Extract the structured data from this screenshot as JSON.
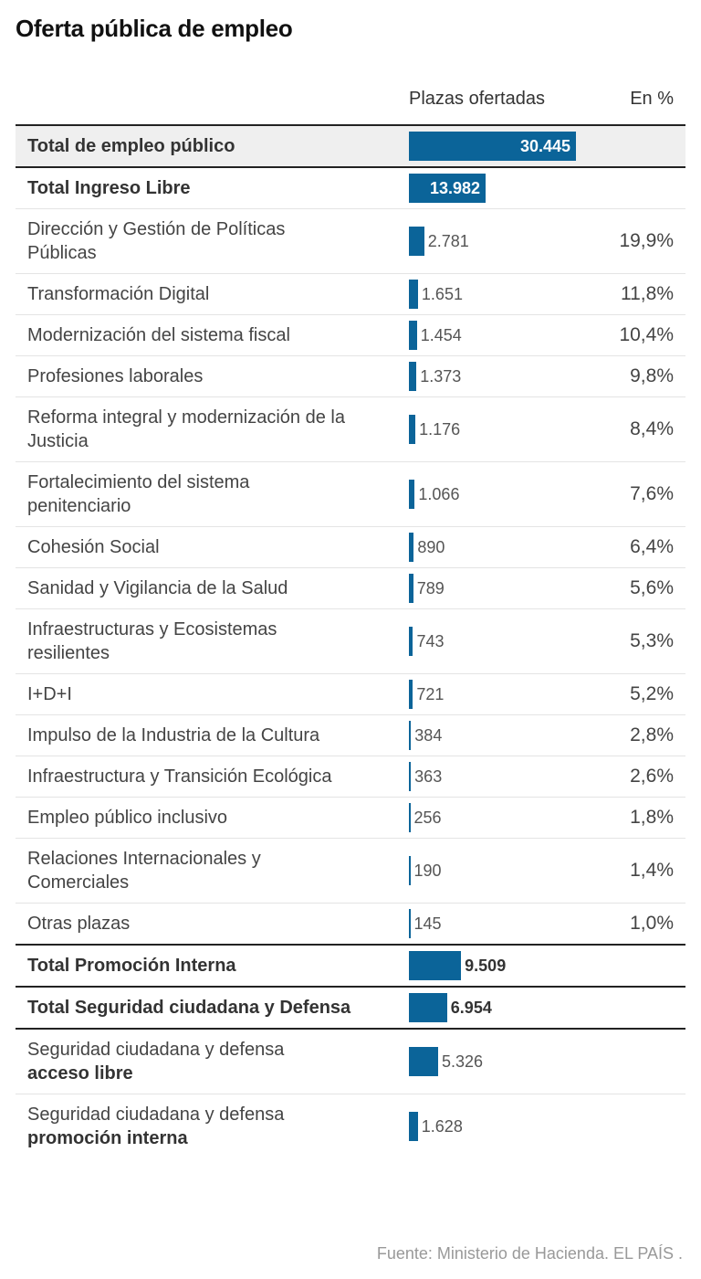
{
  "title": "Oferta pública de empleo",
  "source": "Fuente: Ministerio de Hacienda. EL PAÍS .",
  "chart_data": {
    "type": "table",
    "columns": [
      "Plazas ofertadas",
      "En %"
    ],
    "bar_color": "#0b6499",
    "rows": [
      {
        "label": "Total de empleo público",
        "value": 30445,
        "value_label": "30.445",
        "pct": "",
        "total": true,
        "shaded": true
      },
      {
        "label": "Total Ingreso Libre",
        "value": 13982,
        "value_label": "13.982",
        "pct": "",
        "total": true
      },
      {
        "label": "Dirección y Gestión de Políticas Públicas",
        "value": 2781,
        "value_label": "2.781",
        "pct": "19,9%"
      },
      {
        "label": "Transformación Digital",
        "value": 1651,
        "value_label": "1.651",
        "pct": "11,8%"
      },
      {
        "label": "Modernización del sistema fiscal",
        "value": 1454,
        "value_label": "1.454",
        "pct": "10,4%"
      },
      {
        "label": "Profesiones laborales",
        "value": 1373,
        "value_label": "1.373",
        "pct": "9,8%"
      },
      {
        "label": "Reforma integral y modernización de la Justicia",
        "value": 1176,
        "value_label": "1.176",
        "pct": "8,4%"
      },
      {
        "label": "Fortalecimiento del sistema penitenciario",
        "value": 1066,
        "value_label": "1.066",
        "pct": "7,6%"
      },
      {
        "label": "Cohesión Social",
        "value": 890,
        "value_label": "890",
        "pct": "6,4%"
      },
      {
        "label": "Sanidad y Vigilancia de la Salud",
        "value": 789,
        "value_label": "789",
        "pct": "5,6%"
      },
      {
        "label": "Infraestructuras y Ecosistemas resilientes",
        "value": 743,
        "value_label": "743",
        "pct": "5,3%"
      },
      {
        "label": "I+D+I",
        "value": 721,
        "value_label": "721",
        "pct": "5,2%"
      },
      {
        "label": "Impulso de la Industria de la Cultura",
        "value": 384,
        "value_label": "384",
        "pct": "2,8%"
      },
      {
        "label": "Infraestructura y Transición Ecológica",
        "value": 363,
        "value_label": "363",
        "pct": "2,6%"
      },
      {
        "label": "Empleo público inclusivo",
        "value": 256,
        "value_label": "256",
        "pct": "1,8%"
      },
      {
        "label": "Relaciones Internacionales y Comerciales",
        "value": 190,
        "value_label": "190",
        "pct": "1,4%"
      },
      {
        "label": "Otras plazas",
        "value": 145,
        "value_label": "145",
        "pct": "1,0%"
      },
      {
        "label": "Total Promoción Interna",
        "value": 9509,
        "value_label": "9.509",
        "pct": "",
        "total": true
      },
      {
        "label": "Total Seguridad ciudadana y Defensa",
        "value": 6954,
        "value_label": "6.954",
        "pct": "",
        "total": true
      },
      {
        "label": "Seguridad ciudadana y defensa",
        "label_bold": "acceso libre",
        "value": 5326,
        "value_label": "5.326",
        "pct": "",
        "after_total": true
      },
      {
        "label": "Seguridad ciudadana y defensa",
        "label_bold": "promoción interna",
        "value": 1628,
        "value_label": "1.628",
        "pct": ""
      }
    ]
  }
}
